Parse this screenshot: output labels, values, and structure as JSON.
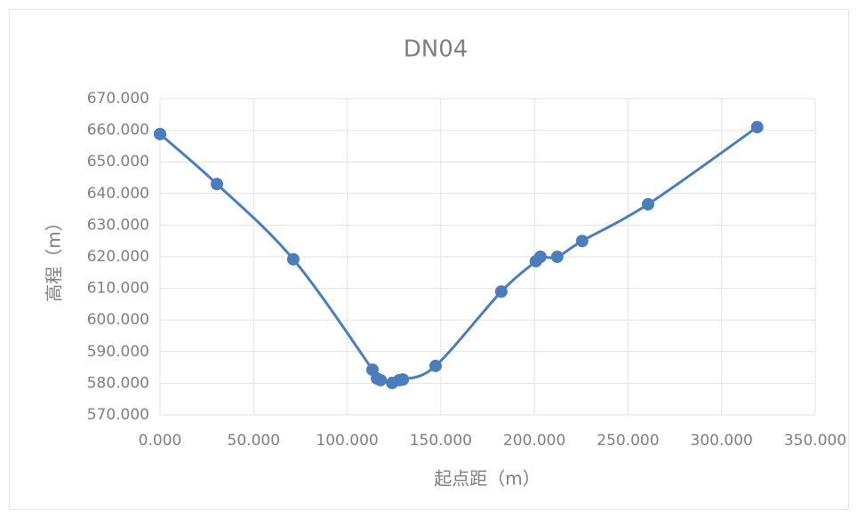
{
  "chart_data": {
    "type": "scatter",
    "title": "DN04",
    "x_label": "起点距（m）",
    "y_label": "高程（m）",
    "series": [
      {
        "name": "DN04",
        "color": "#4a7dba",
        "x": [
          0,
          30.4,
          71.2,
          113.5,
          115.9,
          117.8,
          124,
          127.8,
          129.7,
          147.2,
          182.3,
          200.8,
          203.2,
          212.2,
          225.5,
          260.7,
          319
        ],
        "values": [
          658.8,
          643,
          619.2,
          584.3,
          581.5,
          581,
          580.1,
          581,
          581.2,
          585.5,
          609,
          618.6,
          620,
          620,
          625,
          636.6,
          661
        ]
      }
    ],
    "smooth": true,
    "xlim": [
      0,
      350
    ],
    "xticks": [
      {
        "value": 0,
        "label": "0.000"
      },
      {
        "value": 50,
        "label": "50.000"
      },
      {
        "value": 100,
        "label": "100.000"
      },
      {
        "value": 150,
        "label": "150.000"
      },
      {
        "value": 200,
        "label": "200.000"
      },
      {
        "value": 250,
        "label": "250.000"
      },
      {
        "value": 300,
        "label": "300.000"
      },
      {
        "value": 350,
        "label": "350.000"
      }
    ],
    "ylim": [
      570,
      670
    ],
    "yticks": [
      {
        "value": 570,
        "label": "570.000"
      },
      {
        "value": 580,
        "label": "580.000"
      },
      {
        "value": 590,
        "label": "590.000"
      },
      {
        "value": 600,
        "label": "600.000"
      },
      {
        "value": 610,
        "label": "610.000"
      },
      {
        "value": 620,
        "label": "620.000"
      },
      {
        "value": 630,
        "label": "630.000"
      },
      {
        "value": 640,
        "label": "640.000"
      },
      {
        "value": 650,
        "label": "650.000"
      },
      {
        "value": 660,
        "label": "660.000"
      },
      {
        "value": 670,
        "label": "670.000"
      }
    ],
    "grid": true
  }
}
